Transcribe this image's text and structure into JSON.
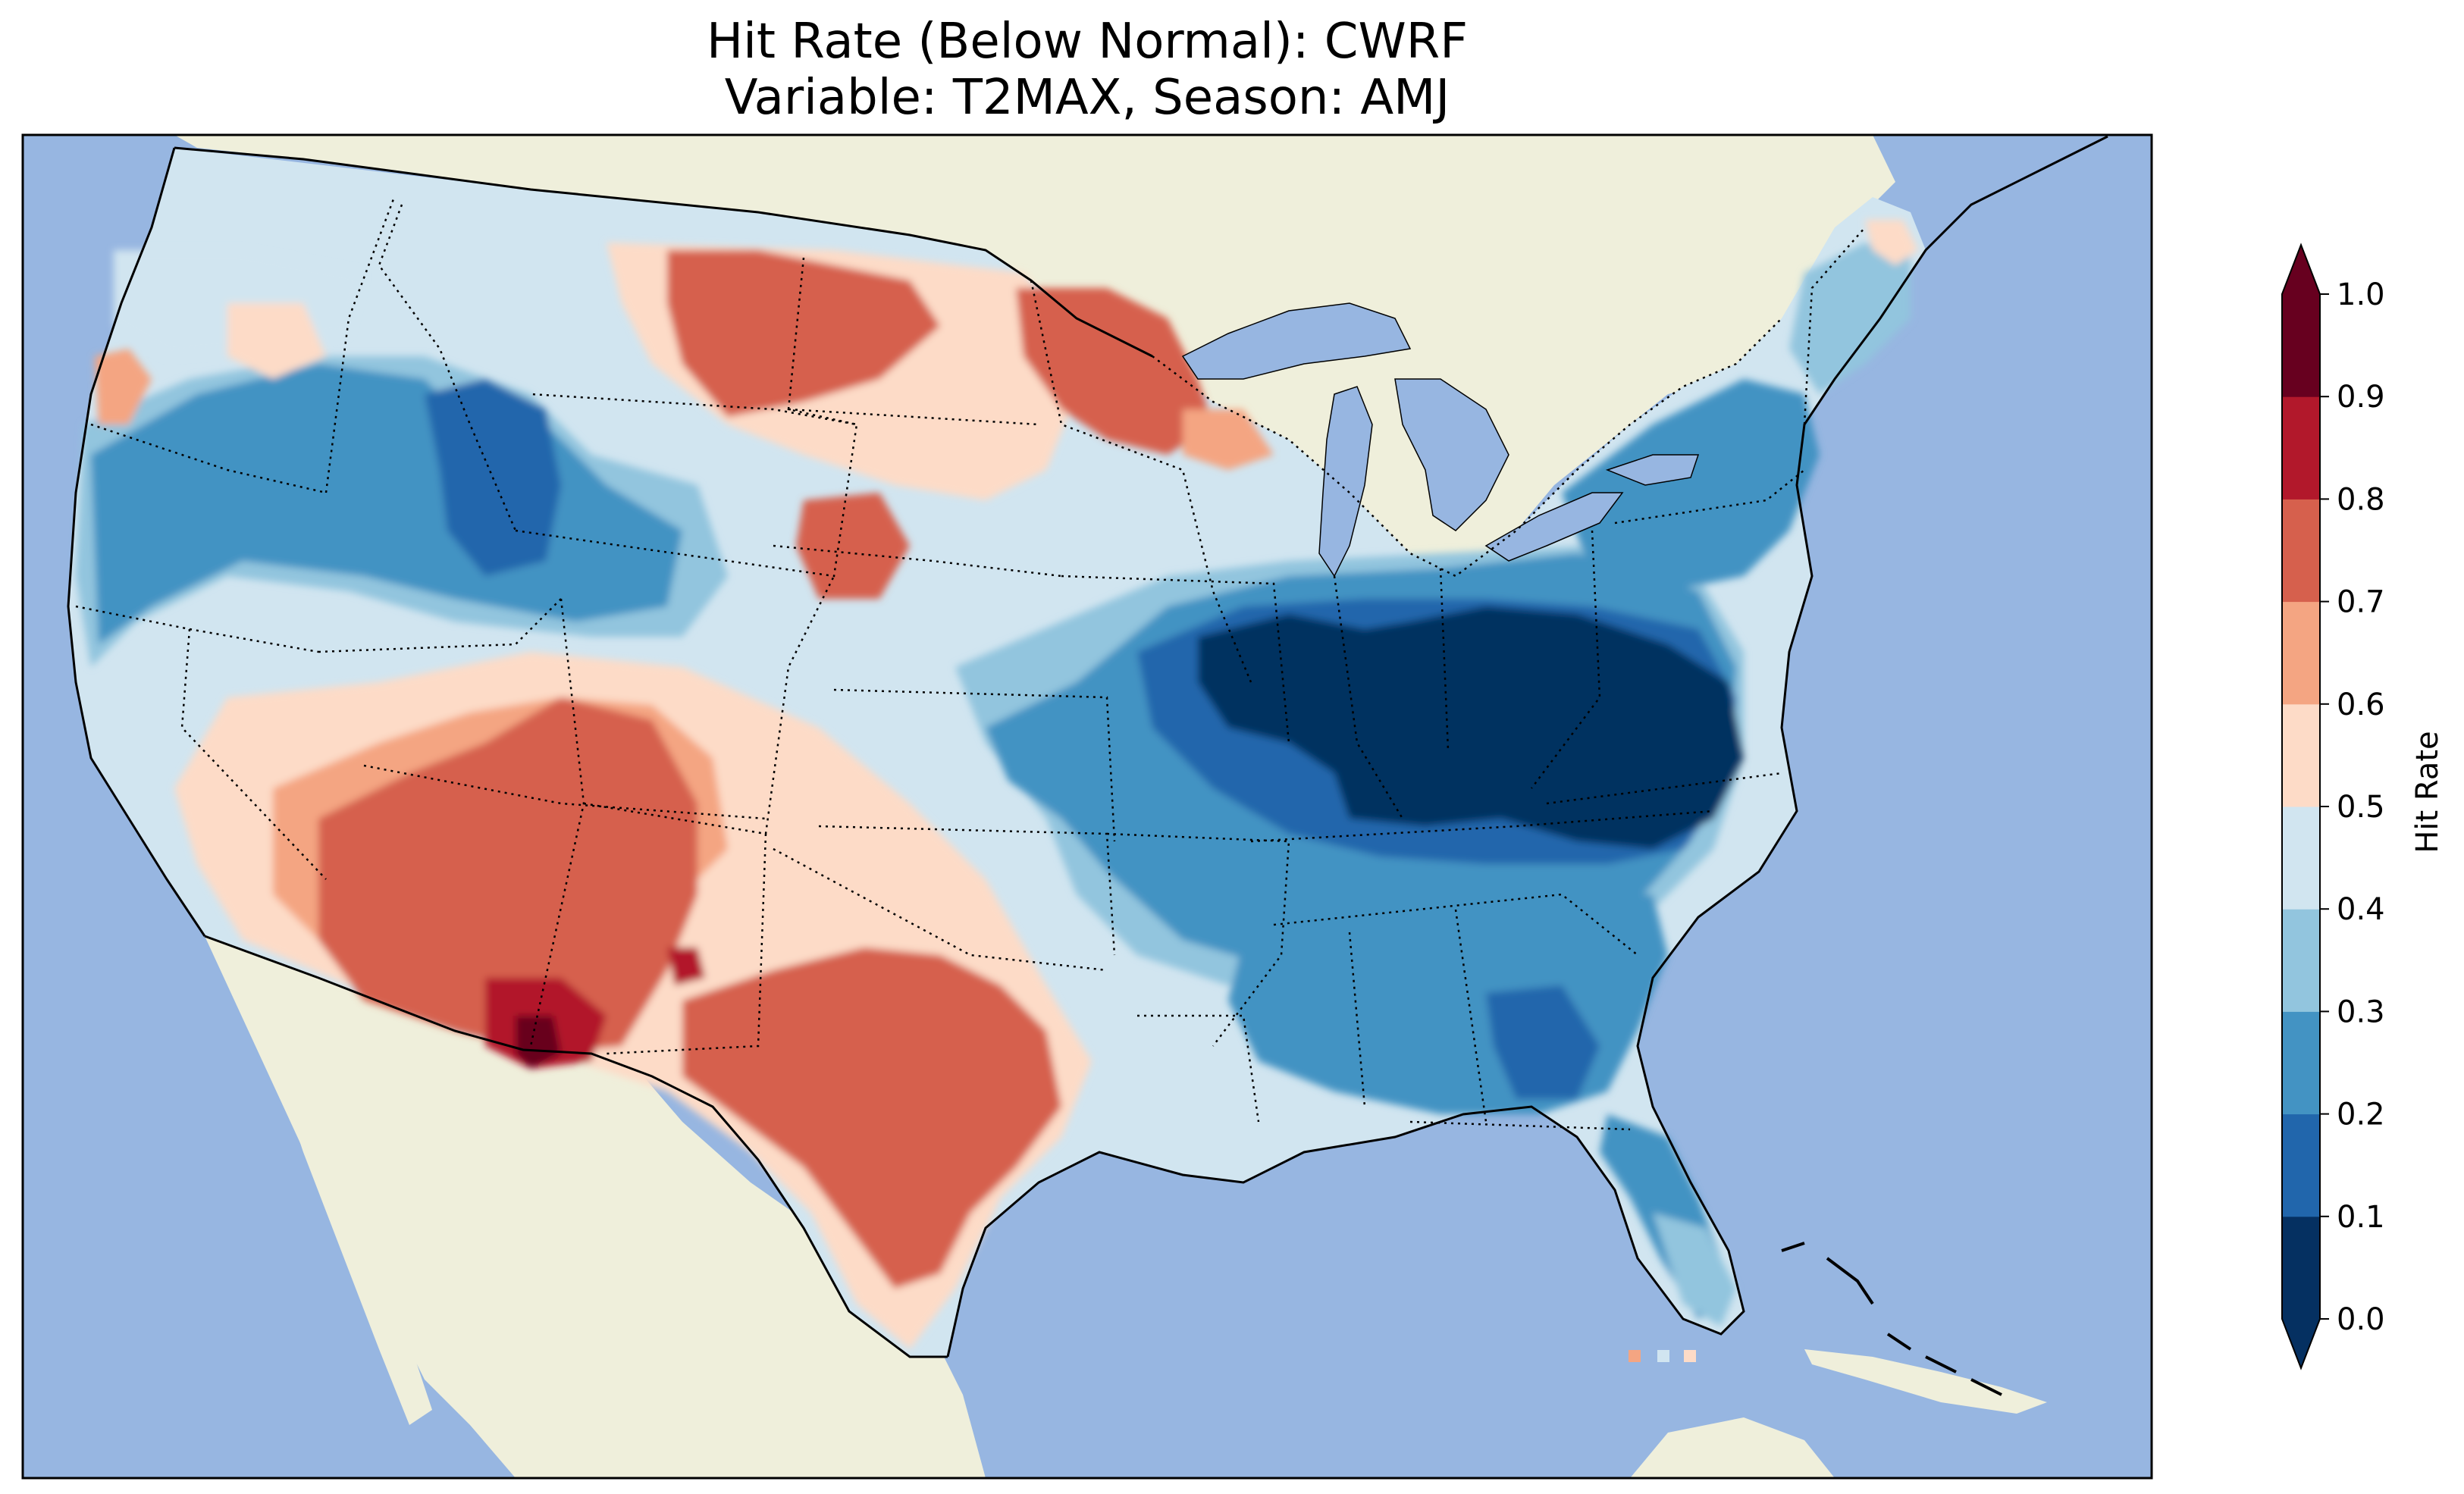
{
  "figure": {
    "title_line1": "Hit Rate (Below Normal): CWRF",
    "title_line2": "Variable: T2MAX, Season: AMJ"
  },
  "map": {
    "projection": "Lambert conformal (contiguous United States)",
    "colors": {
      "ocean": "#97b6e1",
      "land": "#efefdb",
      "coastline": "#000000",
      "state_border": "#000000"
    },
    "regions": [
      {
        "name": "Pacific Northwest & Great Basin",
        "hit_rate": "0.2-0.4"
      },
      {
        "name": "Northern Rockies (Idaho/Wyoming)",
        "hit_rate": "0.1-0.2"
      },
      {
        "name": "Montana plains",
        "hit_rate": "0.7-0.8"
      },
      {
        "name": "Minnesota",
        "hit_rate": "0.7-0.8"
      },
      {
        "name": "Southwest (Arizona/New Mexico)",
        "hit_rate": "0.7-0.8"
      },
      {
        "name": "Southern New Mexico",
        "hit_rate": "0.9-1.0"
      },
      {
        "name": "Texas",
        "hit_rate": "0.7-0.8"
      },
      {
        "name": "Ohio Valley & Mid-Atlantic",
        "hit_rate": "0.0-0.1"
      },
      {
        "name": "Southeast & Gulf coast",
        "hit_rate": "0.2-0.3"
      },
      {
        "name": "Florida",
        "hit_rate": "0.2-0.4"
      },
      {
        "name": "Northeast",
        "hit_rate": "0.2-0.5"
      }
    ]
  },
  "colorbar": {
    "label": "Hit Rate",
    "ticks": [
      "0.0",
      "0.1",
      "0.2",
      "0.3",
      "0.4",
      "0.5",
      "0.6",
      "0.7",
      "0.8",
      "0.9",
      "1.0"
    ],
    "bins": [
      {
        "range": "0.0-0.1",
        "color": "#053061"
      },
      {
        "range": "0.1-0.2",
        "color": "#2166ac"
      },
      {
        "range": "0.2-0.3",
        "color": "#4393c3"
      },
      {
        "range": "0.3-0.4",
        "color": "#92c5de"
      },
      {
        "range": "0.4-0.5",
        "color": "#d1e5f0"
      },
      {
        "range": "0.5-0.6",
        "color": "#fddbc7"
      },
      {
        "range": "0.6-0.7",
        "color": "#f4a582"
      },
      {
        "range": "0.7-0.8",
        "color": "#d6604d"
      },
      {
        "range": "0.8-0.9",
        "color": "#b2182b"
      },
      {
        "range": "0.9-1.0",
        "color": "#67001f"
      }
    ],
    "under_color": "#053061",
    "over_color": "#67001f"
  }
}
